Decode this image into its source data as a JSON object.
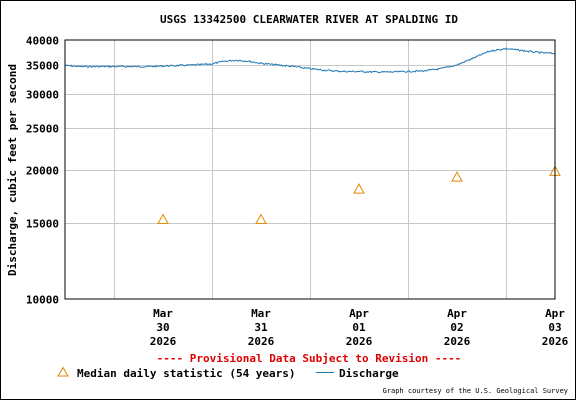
{
  "chart_data": {
    "type": "line",
    "title": "USGS 13342500 CLEARWATER RIVER AT SPALDING ID",
    "ylabel": "Discharge, cubic feet per second",
    "xlabel": "",
    "y_scale": "log",
    "ylim": [
      10000,
      40000
    ],
    "y_ticks": [
      10000,
      15000,
      20000,
      25000,
      30000,
      35000,
      40000
    ],
    "y_tick_labels": [
      "10000",
      "15000",
      "20000",
      "25000",
      "30000",
      "35000",
      "40000"
    ],
    "xlim": [
      "2026-03-29 12:00",
      "2026-04-03 12:00"
    ],
    "x_ticks": [
      {
        "x": "2026-03-30 12:00",
        "lines": [
          "Mar",
          "30",
          "2026"
        ]
      },
      {
        "x": "2026-03-31 12:00",
        "lines": [
          "Mar",
          "31",
          "2026"
        ]
      },
      {
        "x": "2026-04-01 12:00",
        "lines": [
          "Apr",
          "01",
          "2026"
        ]
      },
      {
        "x": "2026-04-02 12:00",
        "lines": [
          "Apr",
          "02",
          "2026"
        ]
      },
      {
        "x": "2026-04-03 12:00",
        "lines": [
          "Apr",
          "03",
          "2026"
        ]
      }
    ],
    "grid": true,
    "series": [
      {
        "name": "Discharge",
        "color": "#1f77b4",
        "style": "line",
        "points": [
          [
            "2026-03-29 12:00",
            34900
          ],
          [
            "2026-03-29 16:00",
            34700
          ],
          [
            "2026-03-29 20:00",
            34700
          ],
          [
            "2026-03-30 00:00",
            34700
          ],
          [
            "2026-03-30 04:00",
            34700
          ],
          [
            "2026-03-30 08:00",
            34700
          ],
          [
            "2026-03-30 12:00",
            34800
          ],
          [
            "2026-03-30 16:00",
            34900
          ],
          [
            "2026-03-30 20:00",
            35000
          ],
          [
            "2026-03-31 00:00",
            35200
          ],
          [
            "2026-03-31 03:00",
            35700
          ],
          [
            "2026-03-31 06:00",
            35900
          ],
          [
            "2026-03-31 09:00",
            35700
          ],
          [
            "2026-03-31 12:00",
            35300
          ],
          [
            "2026-03-31 16:00",
            35000
          ],
          [
            "2026-03-31 20:00",
            34700
          ],
          [
            "2026-04-01 00:00",
            34300
          ],
          [
            "2026-04-01 04:00",
            34000
          ],
          [
            "2026-04-01 08:00",
            33800
          ],
          [
            "2026-04-01 12:00",
            33800
          ],
          [
            "2026-04-01 16:00",
            33700
          ],
          [
            "2026-04-01 20:00",
            33700
          ],
          [
            "2026-04-02 00:00",
            33800
          ],
          [
            "2026-04-02 04:00",
            33900
          ],
          [
            "2026-04-02 08:00",
            34300
          ],
          [
            "2026-04-02 12:00",
            35000
          ],
          [
            "2026-04-02 16:00",
            36300
          ],
          [
            "2026-04-02 20:00",
            37700
          ],
          [
            "2026-04-03 00:00",
            38200
          ],
          [
            "2026-04-03 04:00",
            37800
          ],
          [
            "2026-04-03 08:00",
            37400
          ],
          [
            "2026-04-03 12:00",
            37200
          ]
        ]
      },
      {
        "name": "Median daily statistic (54 years)",
        "color": "#e08a00",
        "style": "triangle",
        "points": [
          [
            "2026-03-30 12:00",
            15300
          ],
          [
            "2026-03-31 12:00",
            15300
          ],
          [
            "2026-04-01 12:00",
            18000
          ],
          [
            "2026-04-02 12:00",
            19200
          ],
          [
            "2026-04-03 12:00",
            19800
          ]
        ]
      }
    ],
    "provisional_note": "---- Provisional Data Subject to Revision ----",
    "legend": {
      "median_label": "Median daily statistic (54 years)",
      "discharge_label": "Discharge"
    },
    "credit": "Graph courtesy of the U.S. Geological Survey"
  }
}
